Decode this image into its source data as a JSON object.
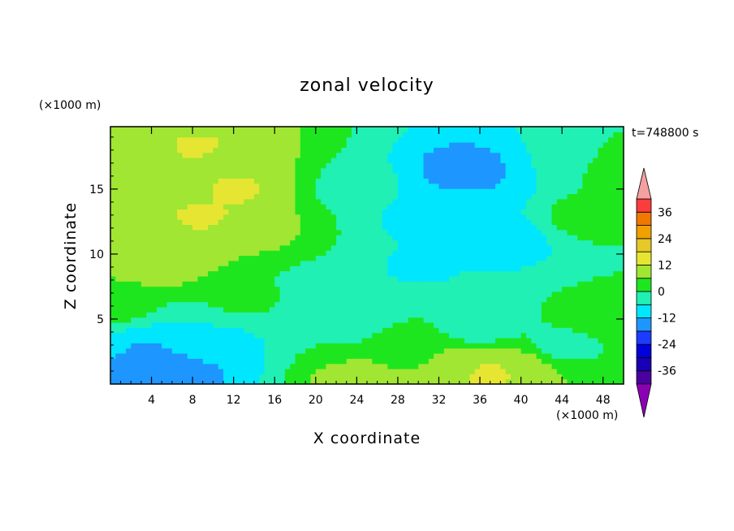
{
  "chart_data": {
    "type": "heatmap",
    "title": "zonal velocity",
    "xlabel": "X coordinate",
    "ylabel": "Z coordinate",
    "x_unit": "(×1000 m)",
    "y_unit": "(×1000 m)",
    "time_label": "t=748800 s",
    "xlim": [
      0,
      50
    ],
    "ylim": [
      0,
      19.8
    ],
    "x_ticks": [
      4,
      8,
      12,
      16,
      20,
      24,
      28,
      32,
      36,
      40,
      44,
      48
    ],
    "y_ticks": [
      5,
      10,
      15
    ],
    "grid": false,
    "colorbar": {
      "levels": [
        -42,
        -36,
        -30,
        -24,
        -18,
        -12,
        -6,
        0,
        6,
        12,
        18,
        24,
        30,
        36,
        42
      ],
      "tick_labels": [
        "36",
        "24",
        "12",
        "0",
        "-12",
        "-24",
        "-36"
      ],
      "tick_values": [
        36,
        24,
        12,
        0,
        -12,
        -24,
        -36
      ],
      "colors": [
        "#4b00a0",
        "#1800b4",
        "#0000dc",
        "#1c3cff",
        "#1e96ff",
        "#00e6ff",
        "#20f0b4",
        "#1ee61e",
        "#a0e632",
        "#e6e632",
        "#e6c828",
        "#f0a000",
        "#f07800",
        "#fa3c3c"
      ],
      "extend_low_color": "#8c00b4",
      "extend_high_color": "#f5a0a0"
    },
    "field_blobs": [
      {
        "x": 6,
        "z": 15,
        "value": 8
      },
      {
        "x": 10,
        "z": 17.5,
        "value": 10
      },
      {
        "x": 5,
        "z": 10,
        "value": 9
      },
      {
        "x": 4.5,
        "z": 9.5,
        "value": 12
      },
      {
        "x": 9,
        "z": 13,
        "value": 13
      },
      {
        "x": 12,
        "z": 15,
        "value": 13
      },
      {
        "x": 9,
        "z": 18,
        "value": 13
      },
      {
        "x": 14,
        "z": 12,
        "value": 9
      },
      {
        "x": 13,
        "z": 6.5,
        "value": 1
      },
      {
        "x": 20,
        "z": 8,
        "value": -1
      },
      {
        "x": 24,
        "z": 15,
        "value": -3
      },
      {
        "x": 23,
        "z": 5,
        "value": -6
      },
      {
        "x": 6,
        "z": 3,
        "value": -9
      },
      {
        "x": 11,
        "z": 2.5,
        "value": -10
      },
      {
        "x": 5,
        "z": 2.5,
        "value": -15
      },
      {
        "x": 8,
        "z": 1,
        "value": -14
      },
      {
        "x": 1,
        "z": 0.3,
        "value": -14
      },
      {
        "x": 35,
        "z": 15,
        "value": -12
      },
      {
        "x": 34.5,
        "z": 16.5,
        "value": -16
      },
      {
        "x": 31,
        "z": 13,
        "value": -9
      },
      {
        "x": 38,
        "z": 11,
        "value": -10
      },
      {
        "x": 30,
        "z": 9,
        "value": -7
      },
      {
        "x": 36,
        "z": 4.5,
        "value": -6
      },
      {
        "x": 29,
        "z": 3,
        "value": 4
      },
      {
        "x": 35,
        "z": 1.5,
        "value": 10
      },
      {
        "x": 37,
        "z": 1,
        "value": 15
      },
      {
        "x": 40,
        "z": 1.5,
        "value": 8
      },
      {
        "x": 23,
        "z": 0.8,
        "value": 11
      },
      {
        "x": 21,
        "z": 2.5,
        "value": 0
      },
      {
        "x": 46.5,
        "z": 13,
        "value": 3
      },
      {
        "x": 48,
        "z": 5,
        "value": 4
      },
      {
        "x": 49,
        "z": 17,
        "value": 5
      },
      {
        "x": 44,
        "z": 3,
        "value": -3
      },
      {
        "x": 45,
        "z": 17.5,
        "value": -5
      },
      {
        "x": 1,
        "z": 6,
        "value": 2
      }
    ]
  }
}
